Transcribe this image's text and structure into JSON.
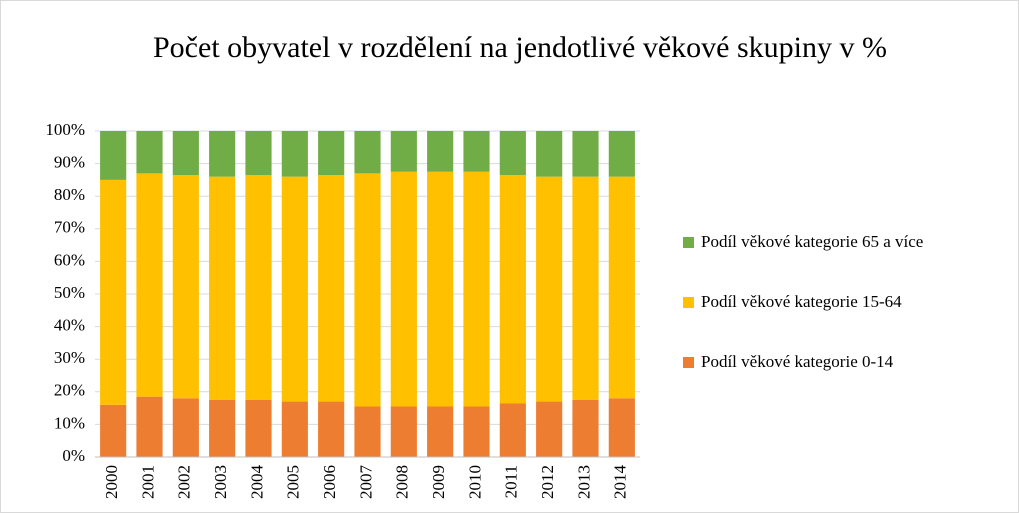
{
  "chart_data": {
    "type": "stacked_bar",
    "title": "Počet obyvatel v rozdělení na jendotlivé věkové skupiny v %",
    "categories": [
      "2000",
      "2001",
      "2002",
      "2003",
      "2004",
      "2005",
      "2006",
      "2007",
      "2008",
      "2009",
      "2010",
      "2011",
      "2012",
      "2013",
      "2014"
    ],
    "series": [
      {
        "name": "Podíl věkové kategorie 0-14",
        "color": "#ed7d31",
        "values": [
          16,
          18.5,
          18,
          17.5,
          17.5,
          17,
          17,
          15.5,
          15.5,
          15.5,
          15.5,
          16.5,
          17,
          17.5,
          18
        ]
      },
      {
        "name": "Podíl věkové kategorie 15-64",
        "color": "#ffc000",
        "values": [
          69,
          68.5,
          68.5,
          68.5,
          69,
          69,
          69.5,
          71.5,
          72,
          72,
          72,
          70,
          69,
          68.5,
          68
        ]
      },
      {
        "name": "Podíl věkové kategorie 65 a více",
        "color": "#70ad47",
        "values": [
          15,
          13,
          13.5,
          14,
          13.5,
          14,
          13.5,
          13,
          12.5,
          12.5,
          12.5,
          13.5,
          14,
          14,
          14
        ]
      }
    ],
    "ylim": [
      0,
      100
    ],
    "yticks": [
      {
        "value": 0,
        "label": "0%"
      },
      {
        "value": 10,
        "label": "10%"
      },
      {
        "value": 20,
        "label": "20%"
      },
      {
        "value": 30,
        "label": "30%"
      },
      {
        "value": 40,
        "label": "40%"
      },
      {
        "value": 50,
        "label": "50%"
      },
      {
        "value": 60,
        "label": "60%"
      },
      {
        "value": 70,
        "label": "70%"
      },
      {
        "value": 80,
        "label": "80%"
      },
      {
        "value": 90,
        "label": "90%"
      },
      {
        "value": 100,
        "label": "100%"
      }
    ],
    "grid": true,
    "legend": "right"
  }
}
